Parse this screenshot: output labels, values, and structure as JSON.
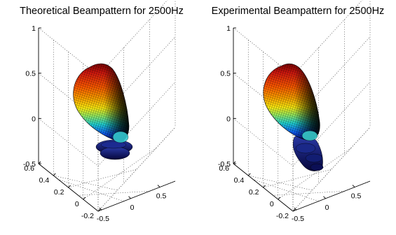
{
  "chart_data": [
    {
      "type": "surface",
      "title": "Theoretical Beampattern for 2500Hz",
      "zlim": [
        -0.5,
        1
      ],
      "z_ticks": [
        "1",
        "0.5",
        "0",
        "-0.5"
      ],
      "y_ticks": [
        "0.6",
        "0.4",
        "0.2",
        "0",
        "-0.2"
      ],
      "x_ticks": [
        "-0.5",
        "0",
        "0.5"
      ],
      "grid": true,
      "colormap": "jet",
      "main_lobe": {
        "direction": "up and toward negative x",
        "peak_z": 1.0
      },
      "side_lobes": 2
    },
    {
      "type": "surface",
      "title": "Experimental Beampattern for 2500Hz",
      "zlim": [
        -0.5,
        1
      ],
      "z_ticks": [
        "1",
        "0.5",
        "0",
        "-0.5"
      ],
      "y_ticks": [
        "0.6",
        "0.4",
        "0.2",
        "0",
        "-0.2"
      ],
      "x_ticks": [
        "-0.5",
        "0",
        "0.5"
      ],
      "grid": true,
      "colormap": "jet",
      "main_lobe": {
        "direction": "up and toward negative x",
        "peak_z": 1.0
      },
      "side_lobes": 3
    }
  ]
}
